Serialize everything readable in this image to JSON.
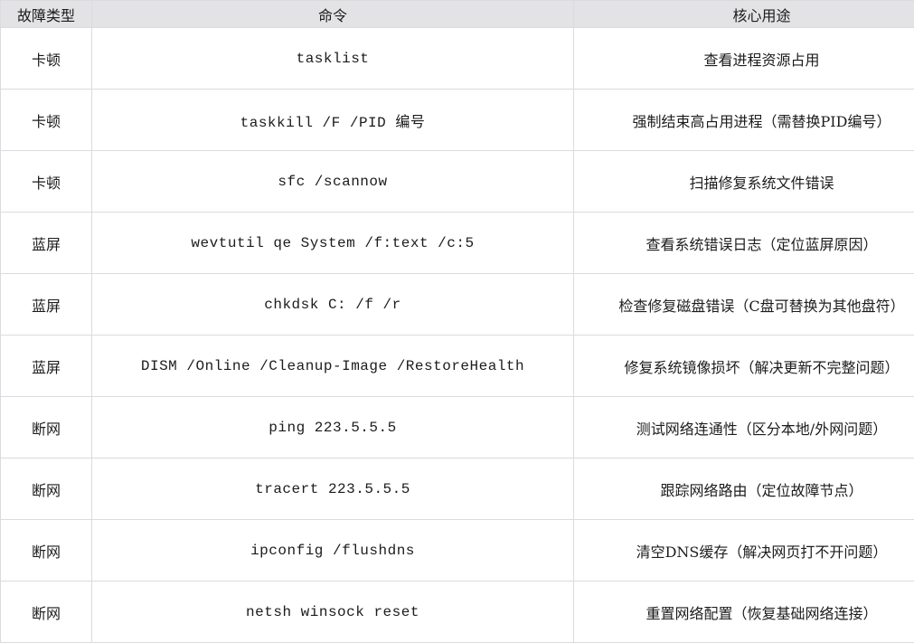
{
  "table": {
    "headers": [
      "故障类型",
      "命令",
      "核心用途"
    ],
    "rows": [
      {
        "type": "卡顿",
        "command": "tasklist",
        "purpose": "查看进程资源占用"
      },
      {
        "type": "卡顿",
        "command": "taskkill /F /PID 编号",
        "purpose": "强制结束高占用进程（需替换PID编号）"
      },
      {
        "type": "卡顿",
        "command": "sfc /scannow",
        "purpose": "扫描修复系统文件错误"
      },
      {
        "type": "蓝屏",
        "command": "wevtutil qe System /f:text /c:5",
        "purpose": "查看系统错误日志（定位蓝屏原因）"
      },
      {
        "type": "蓝屏",
        "command": "chkdsk C: /f /r",
        "purpose": "检查修复磁盘错误（C盘可替换为其他盘符）"
      },
      {
        "type": "蓝屏",
        "command": "DISM /Online /Cleanup-Image /RestoreHealth",
        "purpose": "修复系统镜像损坏（解决更新不完整问题）"
      },
      {
        "type": "断网",
        "command": "ping 223.5.5.5",
        "purpose": "测试网络连通性（区分本地/外网问题）"
      },
      {
        "type": "断网",
        "command": "tracert 223.5.5.5",
        "purpose": "跟踪网络路由（定位故障节点）"
      },
      {
        "type": "断网",
        "command": "ipconfig /flushdns",
        "purpose": "清空DNS缓存（解决网页打不开问题）"
      },
      {
        "type": "断网",
        "command": "netsh winsock reset",
        "purpose": "重置网络配置（恢复基础网络连接）"
      }
    ],
    "colors": {
      "header_bg": "#e3e3e6",
      "border": "#d9dbdf",
      "text": "#1c1c1c",
      "row_bg": "#ffffff"
    }
  }
}
